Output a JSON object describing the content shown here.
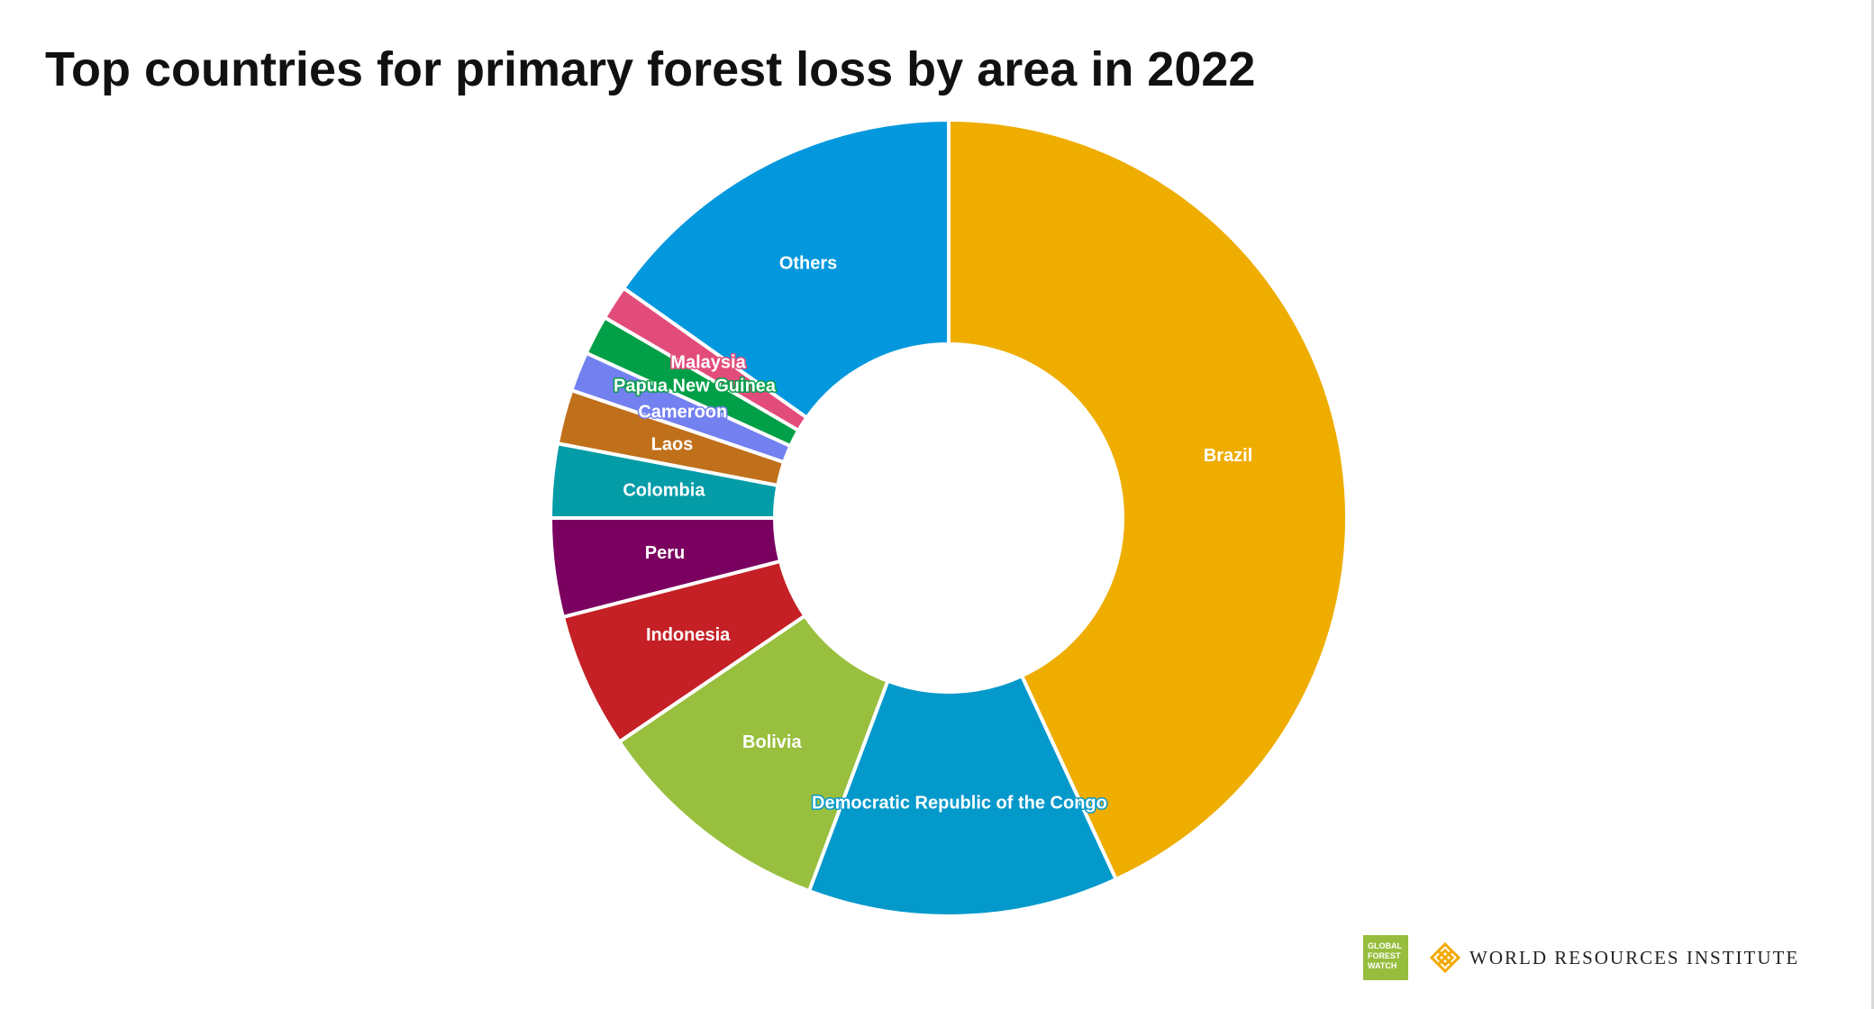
{
  "title": "Top countries for primary forest loss by area in 2022",
  "chart_data": {
    "type": "pie",
    "style": "donut",
    "title": "Top countries for primary forest loss by area in 2022",
    "categories": [
      "Brazil",
      "Democratic Republic of the Congo",
      "Bolivia",
      "Indonesia",
      "Peru",
      "Colombia",
      "Laos",
      "Cameroon",
      "Papua New Guinea",
      "Malaysia",
      "Others"
    ],
    "values": [
      43.1,
      12.6,
      9.8,
      5.5,
      4.0,
      3.0,
      2.2,
      1.6,
      1.6,
      1.4,
      15.2
    ],
    "colors": [
      "#efad00",
      "#0499cb",
      "#98bf3e",
      "#c52026",
      "#7b0160",
      "#039ca7",
      "#c0701b",
      "#7280f0",
      "#019f47",
      "#e24c7b",
      "#0398dd"
    ],
    "legend": "none"
  },
  "logos": {
    "gfw_lines": [
      "GLOBAL",
      "FOREST",
      "WATCH"
    ],
    "wri_name": "WORLD RESOURCES INSTITUTE"
  }
}
